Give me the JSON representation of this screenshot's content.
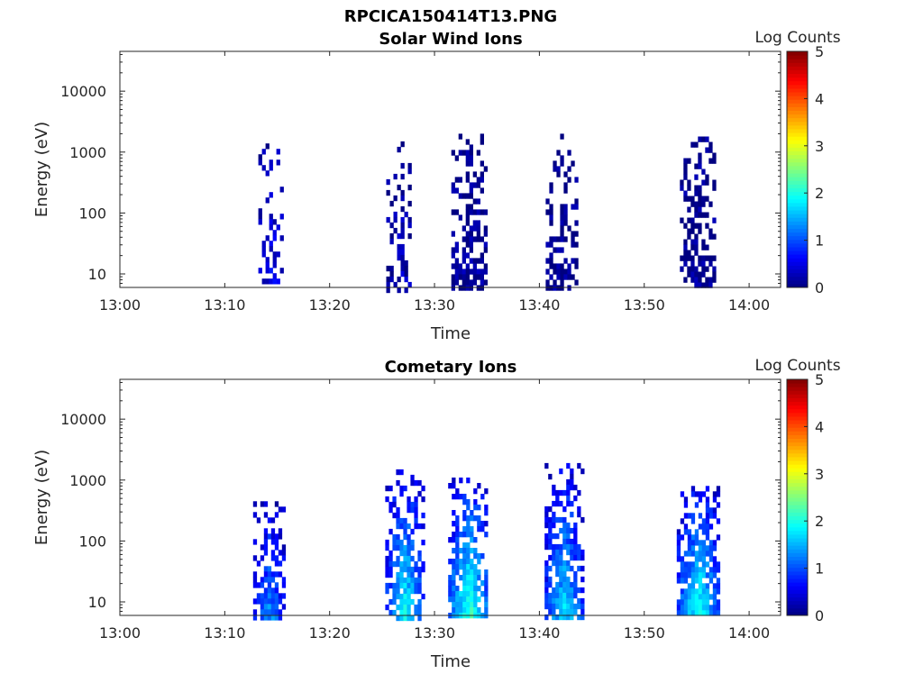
{
  "figure_title": "RPCICA150414T13.PNG",
  "colorbar_ticks": [
    "0",
    "1",
    "2",
    "3",
    "4",
    "5"
  ],
  "chart_data": [
    {
      "type": "heatmap",
      "title": "Solar Wind Ions",
      "xlabel": "Time",
      "ylabel": "Energy (eV)",
      "x_ticks": [
        "13:00",
        "13:10",
        "13:20",
        "13:30",
        "13:40",
        "13:50",
        "14:00"
      ],
      "xlim_minutes": [
        0,
        63
      ],
      "y_ticks": [
        "10",
        "100",
        "1000",
        "10000"
      ],
      "y_tick_values": [
        10,
        100,
        1000,
        10000
      ],
      "ylim": [
        6,
        45000
      ],
      "y_scale": "log",
      "colorbar_label": "Log Counts",
      "clim": [
        0,
        5
      ],
      "colormap": "jet",
      "bursts": [
        {
          "t_start": 13.2,
          "t_end": 15.3,
          "e_low": 8,
          "e_high": 1700,
          "log_counts": 0.4,
          "density": 0.3
        },
        {
          "t_start": 25.4,
          "t_end": 27.8,
          "e_low": 6,
          "e_high": 1500,
          "log_counts": 0.2,
          "density": 0.35
        },
        {
          "t_start": 31.6,
          "t_end": 34.7,
          "e_low": 6,
          "e_high": 2000,
          "log_counts": 0.1,
          "density": 0.55
        },
        {
          "t_start": 40.6,
          "t_end": 43.4,
          "e_low": 6,
          "e_high": 2000,
          "log_counts": 0.05,
          "density": 0.55
        },
        {
          "t_start": 53.4,
          "t_end": 56.6,
          "e_low": 6,
          "e_high": 1800,
          "log_counts": 0.05,
          "density": 0.6
        }
      ]
    },
    {
      "type": "heatmap",
      "title": "Cometary Ions",
      "xlabel": "Time",
      "ylabel": "Energy (eV)",
      "x_ticks": [
        "13:00",
        "13:10",
        "13:20",
        "13:30",
        "13:40",
        "13:50",
        "14:00"
      ],
      "xlim_minutes": [
        0,
        63
      ],
      "y_ticks": [
        "10",
        "100",
        "1000",
        "10000"
      ],
      "y_tick_values": [
        10,
        100,
        1000,
        10000
      ],
      "ylim": [
        6,
        45000
      ],
      "y_scale": "log",
      "colorbar_label": "Log Counts",
      "clim": [
        0,
        5
      ],
      "colormap": "jet",
      "bursts": [
        {
          "t_start": 12.7,
          "t_end": 15.6,
          "e_low": 6,
          "e_high": 550,
          "log_counts": 0.9,
          "density": 0.75
        },
        {
          "t_start": 25.3,
          "t_end": 28.8,
          "e_low": 6,
          "e_high": 1500,
          "log_counts": 1.3,
          "density": 0.7
        },
        {
          "t_start": 31.3,
          "t_end": 35.0,
          "e_low": 6,
          "e_high": 1100,
          "log_counts": 1.5,
          "density": 0.8
        },
        {
          "t_start": 40.5,
          "t_end": 44.0,
          "e_low": 6,
          "e_high": 1900,
          "log_counts": 1.2,
          "density": 0.75
        },
        {
          "t_start": 53.1,
          "t_end": 57.0,
          "e_low": 6,
          "e_high": 800,
          "log_counts": 1.4,
          "density": 0.85
        }
      ]
    }
  ]
}
